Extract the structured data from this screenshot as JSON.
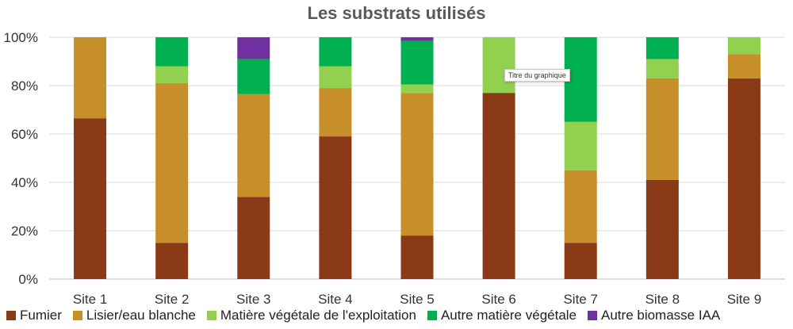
{
  "chart_data": {
    "type": "bar",
    "stacked": true,
    "title": "Les substrats utilisés",
    "categories": [
      "Site 1",
      "Site 2",
      "Site 3",
      "Site 4",
      "Site 5",
      "Site 6",
      "Site 7",
      "Site 8",
      "Site 9"
    ],
    "series": [
      {
        "name": "Fumier",
        "color": "#8B3A18",
        "values": [
          66.5,
          15,
          34,
          59,
          18,
          77,
          15,
          41,
          83
        ]
      },
      {
        "name": "Lisier/eau blanche",
        "color": "#C68F2A",
        "values": [
          33.5,
          66,
          42.5,
          20,
          59,
          0,
          30,
          42,
          10
        ]
      },
      {
        "name": "Matière végétale de l'exploitation",
        "color": "#92D050",
        "values": [
          0,
          7,
          0,
          9,
          3.5,
          23,
          20,
          8,
          7
        ]
      },
      {
        "name": "Autre matière végétale",
        "color": "#00B050",
        "values": [
          0,
          12,
          14.5,
          12,
          18,
          0,
          35,
          9,
          0
        ]
      },
      {
        "name": "Autre biomasse IAA",
        "color": "#7030A0",
        "values": [
          0,
          0,
          9,
          0,
          1.5,
          0,
          0,
          0,
          0
        ]
      }
    ],
    "ylim": [
      0,
      100
    ],
    "yticks": [
      "0%",
      "20%",
      "40%",
      "60%",
      "80%",
      "100%"
    ],
    "grid": true,
    "legend_position": "bottom",
    "tooltip_text": "Titre du graphique"
  }
}
